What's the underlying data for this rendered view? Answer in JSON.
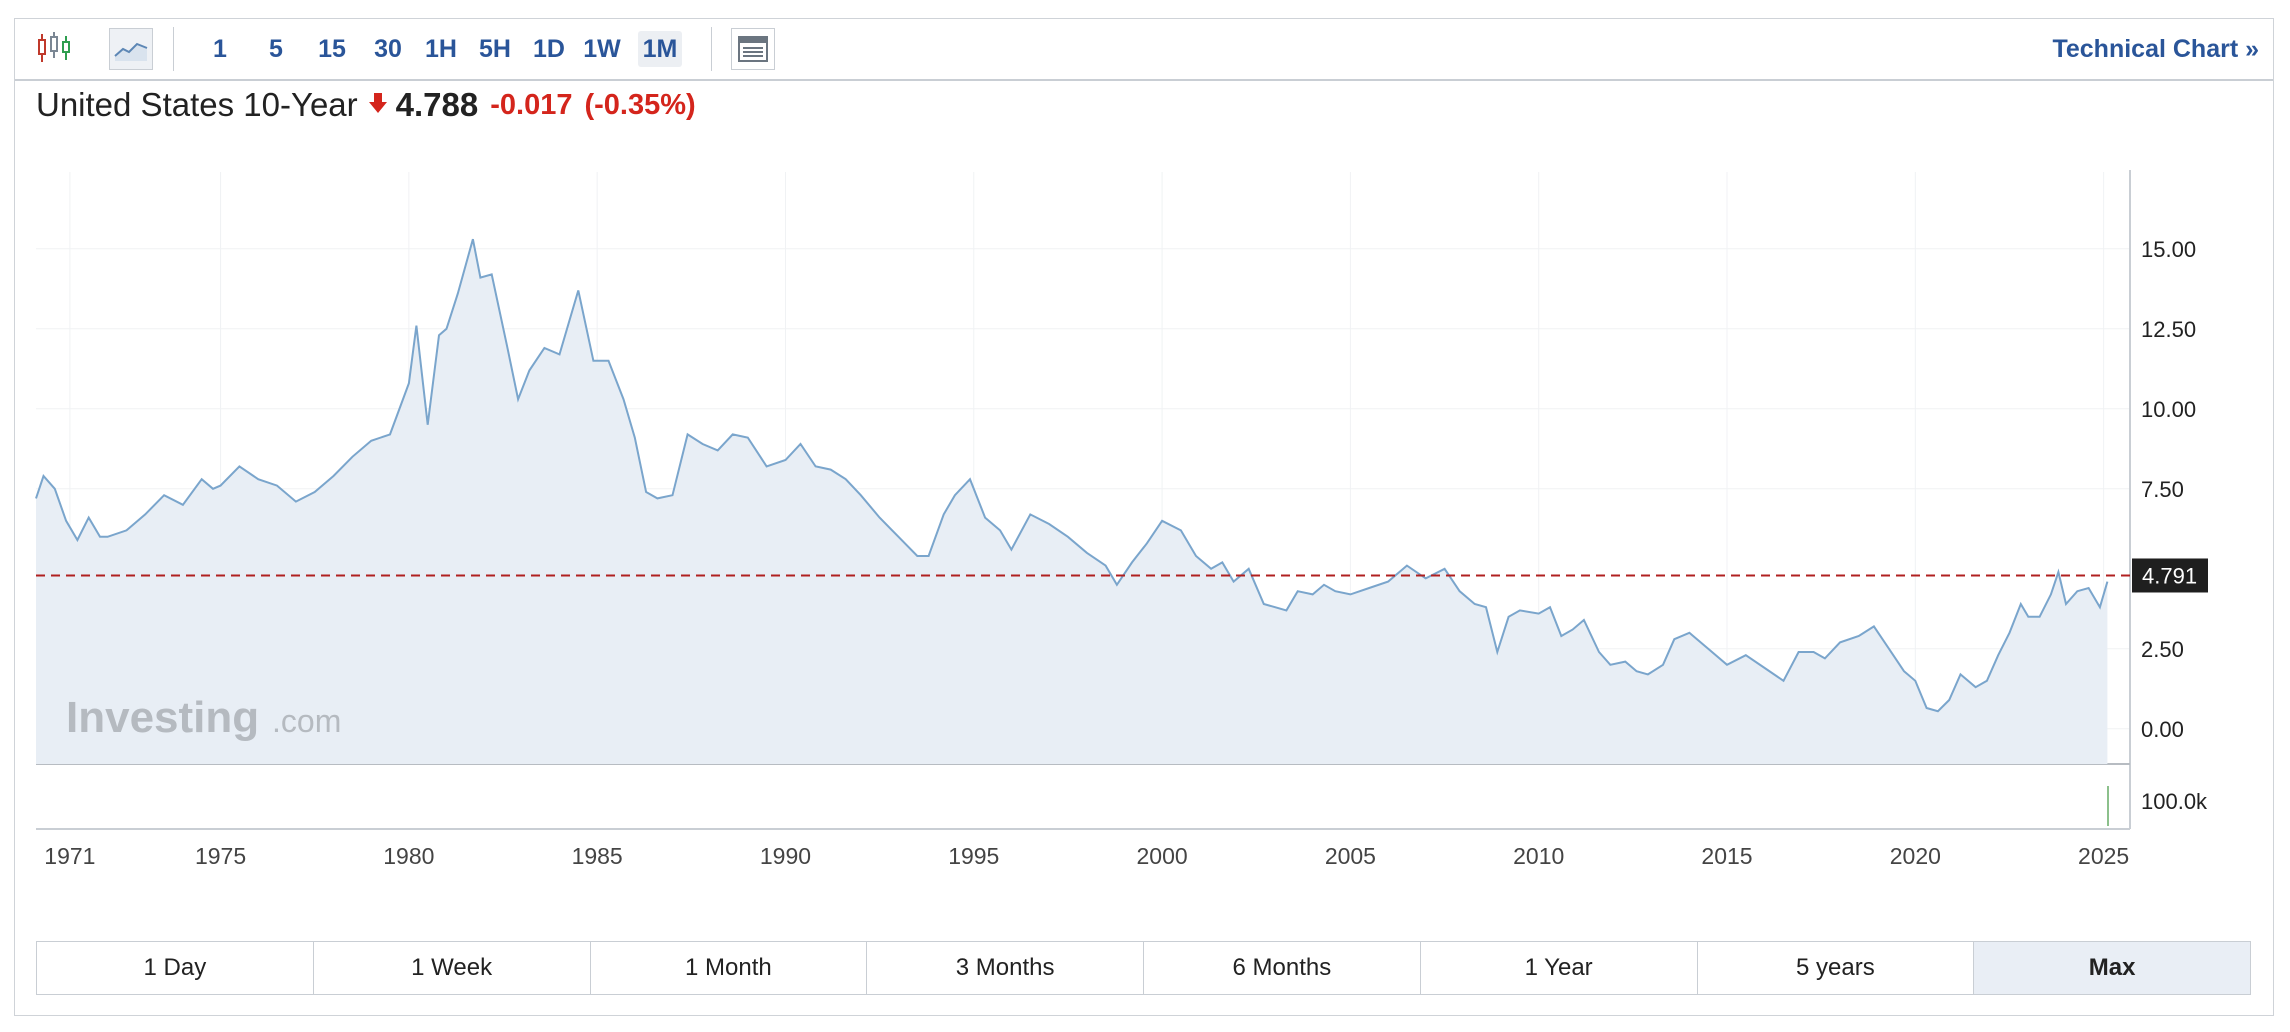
{
  "toolbar": {
    "chart_type_icons": [
      "candlestick-icon",
      "area-chart-icon"
    ],
    "intervals": [
      "1",
      "5",
      "15",
      "30",
      "1H",
      "5H",
      "1D",
      "1W",
      "1M"
    ],
    "active_interval": "1M",
    "layout_icon": "layout-icon",
    "technical_chart_label": "Technical Chart »"
  },
  "quote": {
    "name": "United States 10-Year",
    "direction_icon": "down-arrow-icon",
    "last": "4.788",
    "change": "-0.017",
    "change_pct": "(-0.35%)",
    "down_color": "#d4251c"
  },
  "ranges": {
    "items": [
      "1 Day",
      "1 Week",
      "1 Month",
      "3 Months",
      "6 Months",
      "1 Year",
      "5 years",
      "Max"
    ],
    "active": "Max"
  },
  "chart_data": {
    "type": "area",
    "title": "United States 10-Year",
    "watermark": {
      "brand": "Investing",
      "suffix": ".com"
    },
    "x_ticks": [
      "1971",
      "1975",
      "1980",
      "1985",
      "1990",
      "1995",
      "2000",
      "2005",
      "2010",
      "2015",
      "2020",
      "2025"
    ],
    "xlim": [
      1970.1,
      2025.7
    ],
    "y_ticks": [
      "15.00",
      "12.50",
      "10.00",
      "7.50",
      "2.50",
      "0.00"
    ],
    "ylim": [
      -1.1,
      17.4
    ],
    "current_value_label": "4.791",
    "current_value": 4.791,
    "volume_tick": "100.0k",
    "colors": {
      "line": "#7aa5cc",
      "fill": "#e8eef5",
      "ref_line": "#b02020",
      "label_bg": "#1f1f1f"
    },
    "series": [
      {
        "x": [
          1970.0,
          1970.3,
          1970.6,
          1970.9,
          1971.2,
          1971.5,
          1971.8,
          1972.0,
          1972.5,
          1973.0,
          1973.5,
          1974.0,
          1974.5,
          1974.8,
          1975.0,
          1975.5,
          1976.0,
          1976.5,
          1977.0,
          1977.5,
          1978.0,
          1978.5,
          1979.0,
          1979.5,
          1980.0,
          1980.2,
          1980.5,
          1980.8,
          1981.0,
          1981.3,
          1981.7,
          1981.9,
          1982.2,
          1982.6,
          1982.9,
          1983.2,
          1983.6,
          1984.0,
          1984.5,
          1984.9,
          1985.3,
          1985.7,
          1986.0,
          1986.3,
          1986.6,
          1987.0,
          1987.4,
          1987.8,
          1988.2,
          1988.6,
          1989.0,
          1989.5,
          1990.0,
          1990.4,
          1990.8,
          1991.2,
          1991.6,
          1992.0,
          1992.5,
          1993.0,
          1993.5,
          1993.8,
          1994.2,
          1994.5,
          1994.9,
          1995.3,
          1995.7,
          1996.0,
          1996.5,
          1997.0,
          1997.5,
          1998.0,
          1998.5,
          1998.8,
          1999.2,
          1999.6,
          2000.0,
          2000.5,
          2000.9,
          2001.3,
          2001.6,
          2001.9,
          2002.3,
          2002.7,
          2003.0,
          2003.3,
          2003.6,
          2004.0,
          2004.3,
          2004.6,
          2005.0,
          2005.5,
          2006.0,
          2006.5,
          2007.0,
          2007.5,
          2007.9,
          2008.3,
          2008.6,
          2008.9,
          2009.2,
          2009.5,
          2010.0,
          2010.3,
          2010.6,
          2010.9,
          2011.2,
          2011.6,
          2011.9,
          2012.3,
          2012.6,
          2012.9,
          2013.3,
          2013.6,
          2014.0,
          2014.5,
          2015.0,
          2015.5,
          2016.0,
          2016.5,
          2016.9,
          2017.3,
          2017.6,
          2018.0,
          2018.5,
          2018.9,
          2019.3,
          2019.7,
          2020.0,
          2020.3,
          2020.6,
          2020.9,
          2021.2,
          2021.6,
          2021.9,
          2022.2,
          2022.5,
          2022.8,
          2023.0,
          2023.3,
          2023.6,
          2023.8,
          2024.0,
          2024.3,
          2024.6,
          2024.9,
          2025.1
        ],
        "y": [
          7.2,
          7.9,
          7.5,
          6.5,
          5.9,
          6.6,
          6.0,
          6.0,
          6.2,
          6.7,
          7.3,
          7.0,
          7.8,
          7.5,
          7.6,
          8.2,
          7.8,
          7.6,
          7.1,
          7.4,
          7.9,
          8.5,
          9.0,
          9.2,
          10.8,
          12.6,
          9.5,
          12.3,
          12.5,
          13.6,
          15.3,
          14.1,
          14.2,
          12.0,
          10.3,
          11.2,
          11.9,
          11.7,
          13.7,
          11.5,
          11.5,
          10.3,
          9.1,
          7.4,
          7.2,
          7.3,
          9.2,
          8.9,
          8.7,
          9.2,
          9.1,
          8.2,
          8.4,
          8.9,
          8.2,
          8.1,
          7.8,
          7.3,
          6.6,
          6.0,
          5.4,
          5.4,
          6.7,
          7.3,
          7.8,
          6.6,
          6.2,
          5.6,
          6.7,
          6.4,
          6.0,
          5.5,
          5.1,
          4.5,
          5.2,
          5.8,
          6.5,
          6.2,
          5.4,
          5.0,
          5.2,
          4.6,
          5.0,
          3.9,
          3.8,
          3.7,
          4.3,
          4.2,
          4.5,
          4.3,
          4.2,
          4.4,
          4.6,
          5.1,
          4.7,
          5.0,
          4.3,
          3.9,
          3.8,
          2.4,
          3.5,
          3.7,
          3.6,
          3.8,
          2.9,
          3.1,
          3.4,
          2.4,
          2.0,
          2.1,
          1.8,
          1.7,
          2.0,
          2.8,
          3.0,
          2.5,
          2.0,
          2.3,
          1.9,
          1.5,
          2.4,
          2.4,
          2.2,
          2.7,
          2.9,
          3.2,
          2.5,
          1.8,
          1.5,
          0.65,
          0.55,
          0.9,
          1.7,
          1.3,
          1.5,
          2.3,
          3.0,
          3.9,
          3.5,
          3.5,
          4.2,
          4.9,
          3.9,
          4.3,
          4.4,
          3.8,
          4.6
        ]
      }
    ]
  }
}
